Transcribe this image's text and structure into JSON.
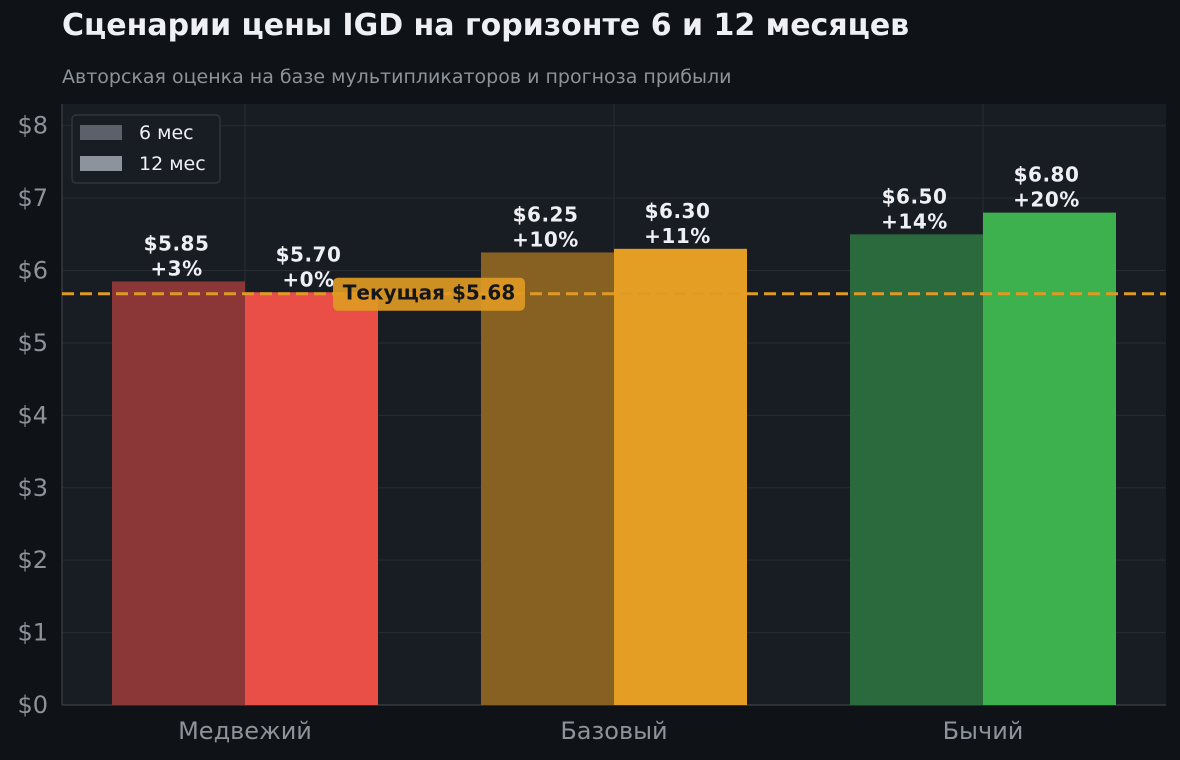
{
  "title": "Сценарии цены IGD на горизонте 6 и 12 месяцев",
  "subtitle": "Авторская оценка на базе мультипликаторов и прогноза прибыли",
  "chart_data": {
    "type": "bar",
    "categories": [
      "Медвежий",
      "Базовый",
      "Бычий"
    ],
    "series": [
      {
        "name": "6 мес",
        "values": [
          5.85,
          6.25,
          6.5
        ],
        "labels": [
          "$5.85\n+3%",
          "$6.25\n+10%",
          "$6.50\n+14%"
        ],
        "colors": [
          "#8b3637",
          "#876122",
          "#2a6a3d"
        ]
      },
      {
        "name": "12 мес",
        "values": [
          5.7,
          6.3,
          6.8
        ],
        "labels": [
          "$5.70\n+0%",
          "$6.30\n+11%",
          "$6.80\n+20%"
        ],
        "colors": [
          "#ea4f47",
          "#e59e24",
          "#3db14e"
        ]
      }
    ],
    "ylim": [
      0,
      8.3
    ],
    "yticks": [
      0,
      1,
      2,
      3,
      4,
      5,
      6,
      7,
      8
    ],
    "ytick_labels": [
      "$0",
      "$1",
      "$2",
      "$3",
      "$4",
      "$5",
      "$6",
      "$7",
      "$8"
    ],
    "reference_line": {
      "value": 5.68,
      "label": "Текущая $5.68",
      "color": "#e09a24"
    },
    "legend": {
      "placement": "top-left",
      "entries": [
        {
          "name": "6 мес",
          "color": "#5c606a"
        },
        {
          "name": "12 мес",
          "color": "#8c939d"
        }
      ]
    },
    "grid": true,
    "colors": {
      "plot_bg": "#181c23",
      "grid": "#272c35",
      "axis": "#353a43",
      "tick_text": "#8d939b",
      "label_text": "#eef0f3",
      "ref_box_text": "#14161a"
    }
  }
}
